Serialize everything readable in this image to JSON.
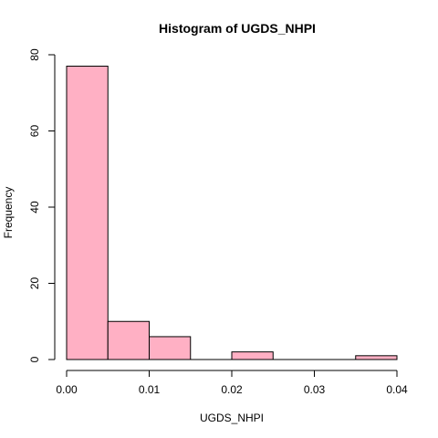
{
  "chart_data": {
    "type": "bar",
    "title": "Histogram of UGDS_NHPI",
    "xlabel": "UGDS_NHPI",
    "ylabel": "Frequency",
    "bins": [
      {
        "start": 0.0,
        "end": 0.005,
        "value": 77
      },
      {
        "start": 0.005,
        "end": 0.01,
        "value": 10
      },
      {
        "start": 0.01,
        "end": 0.015,
        "value": 6
      },
      {
        "start": 0.015,
        "end": 0.02,
        "value": 0
      },
      {
        "start": 0.02,
        "end": 0.025,
        "value": 2
      },
      {
        "start": 0.025,
        "end": 0.03,
        "value": 0
      },
      {
        "start": 0.03,
        "end": 0.035,
        "value": 0
      },
      {
        "start": 0.035,
        "end": 0.04,
        "value": 1
      }
    ],
    "xlim": [
      0,
      0.04
    ],
    "ylim": [
      0,
      80
    ],
    "xticks": [
      {
        "value": 0.0,
        "label": "0.00"
      },
      {
        "value": 0.01,
        "label": "0.01"
      },
      {
        "value": 0.02,
        "label": "0.02"
      },
      {
        "value": 0.03,
        "label": "0.03"
      },
      {
        "value": 0.04,
        "label": "0.04"
      }
    ],
    "yticks": [
      {
        "value": 0,
        "label": "0"
      },
      {
        "value": 20,
        "label": "20"
      },
      {
        "value": 40,
        "label": "40"
      },
      {
        "value": 60,
        "label": "60"
      },
      {
        "value": 80,
        "label": "80"
      }
    ],
    "bar_color": "#ffb0c4",
    "grid": false
  }
}
